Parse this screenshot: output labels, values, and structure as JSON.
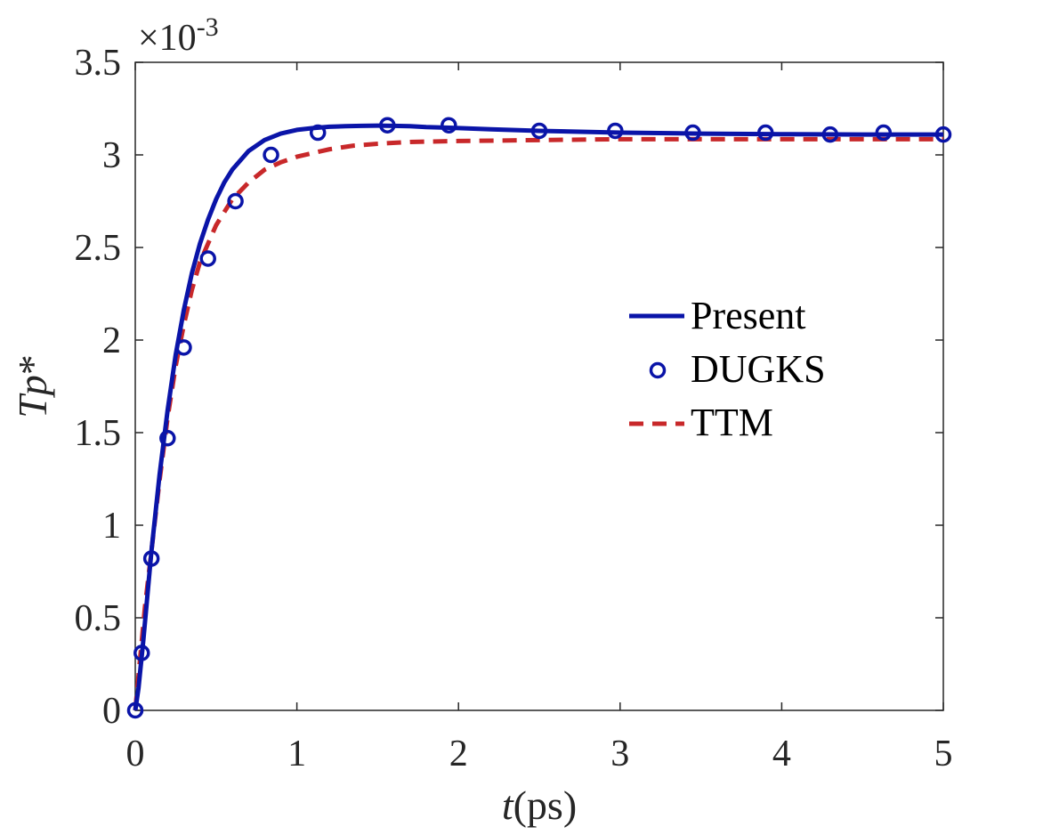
{
  "colors": {
    "present": "#0a14a8",
    "dugks": "#0a14a8",
    "ttm": "#c8282a",
    "axis": "#262626"
  },
  "chart_data": {
    "type": "line",
    "title": "",
    "xlabel_var": "t",
    "xlabel_unit": "(ps)",
    "ylabel": "Tp*",
    "ylabel_var": "Tp",
    "ylabel_sup": "*",
    "y_exponent_times": "×10",
    "y_exponent_power": "-3",
    "xlim": [
      0,
      5
    ],
    "ylim": [
      0,
      3.5
    ],
    "x_ticks": [
      0,
      1,
      2,
      3,
      4,
      5
    ],
    "x_tick_labels": [
      "0",
      "1",
      "2",
      "3",
      "4",
      "5"
    ],
    "y_ticks": [
      0,
      0.5,
      1,
      1.5,
      2,
      2.5,
      3,
      3.5
    ],
    "y_tick_labels": [
      "0",
      "0.5",
      "1",
      "1.5",
      "2",
      "2.5",
      "3",
      "3.5"
    ],
    "legend_position": "center-right",
    "series": [
      {
        "name": "Present",
        "style": "solid",
        "x": [
          0,
          0.02,
          0.05,
          0.1,
          0.15,
          0.2,
          0.25,
          0.3,
          0.35,
          0.4,
          0.45,
          0.5,
          0.55,
          0.6,
          0.7,
          0.8,
          0.9,
          1.0,
          1.1,
          1.2,
          1.3,
          1.4,
          1.5,
          1.6,
          1.7,
          1.8,
          2.0,
          2.2,
          2.5,
          3.0,
          3.5,
          4.0,
          4.5,
          5.0
        ],
        "values": [
          0,
          0.12,
          0.38,
          0.86,
          1.27,
          1.62,
          1.92,
          2.16,
          2.36,
          2.52,
          2.65,
          2.76,
          2.85,
          2.92,
          3.02,
          3.08,
          3.115,
          3.135,
          3.145,
          3.152,
          3.155,
          3.157,
          3.158,
          3.157,
          3.155,
          3.15,
          3.145,
          3.138,
          3.13,
          3.12,
          3.115,
          3.112,
          3.11,
          3.11
        ]
      },
      {
        "name": "DUGKS",
        "style": "markers",
        "x": [
          0.0,
          0.04,
          0.1,
          0.2,
          0.3,
          0.45,
          0.62,
          0.84,
          1.13,
          1.56,
          1.94,
          2.5,
          2.97,
          3.45,
          3.9,
          4.3,
          4.63,
          5.0
        ],
        "values": [
          0.0,
          0.31,
          0.82,
          1.47,
          1.96,
          2.44,
          2.75,
          3.0,
          3.12,
          3.16,
          3.16,
          3.13,
          3.13,
          3.12,
          3.12,
          3.11,
          3.12,
          3.11
        ]
      },
      {
        "name": "TTM",
        "style": "dashed",
        "x": [
          0,
          0.03,
          0.06,
          0.1,
          0.15,
          0.2,
          0.25,
          0.3,
          0.35,
          0.4,
          0.5,
          0.6,
          0.7,
          0.8,
          0.9,
          1.0,
          1.1,
          1.2,
          1.35,
          1.5,
          1.7,
          2.0,
          2.5,
          3.0,
          3.5,
          4.0,
          4.5,
          5.0
        ],
        "values": [
          0,
          0.28,
          0.56,
          0.86,
          1.24,
          1.58,
          1.86,
          2.08,
          2.27,
          2.42,
          2.62,
          2.76,
          2.85,
          2.92,
          2.96,
          2.99,
          3.01,
          3.03,
          3.05,
          3.06,
          3.07,
          3.075,
          3.08,
          3.085,
          3.085,
          3.085,
          3.085,
          3.085
        ]
      }
    ]
  }
}
